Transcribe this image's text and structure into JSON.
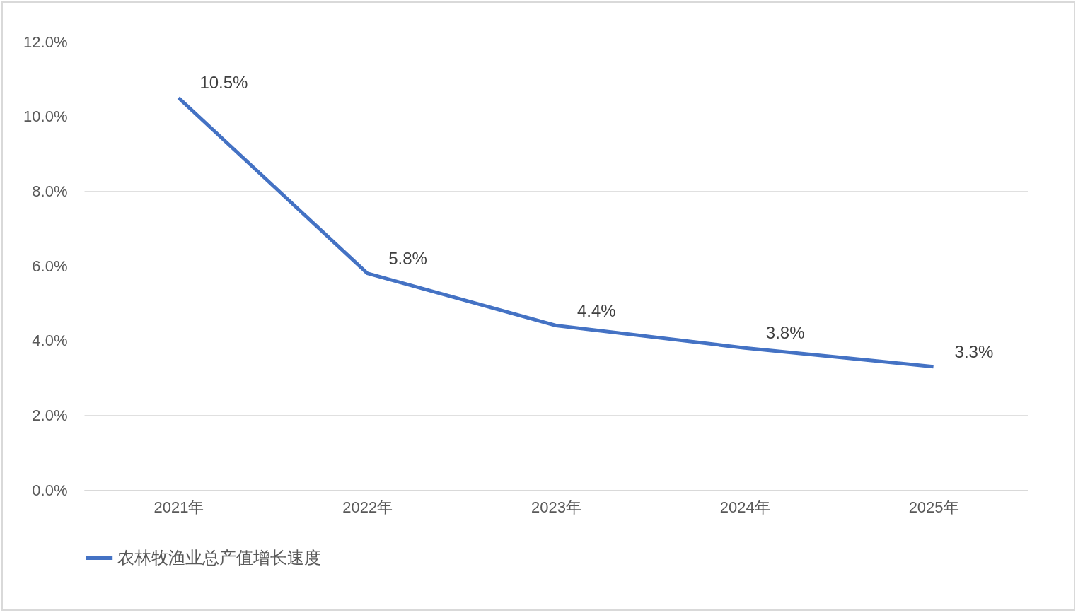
{
  "chart_data": {
    "type": "line",
    "categories": [
      "2021年",
      "2022年",
      "2023年",
      "2024年",
      "2025年"
    ],
    "series": [
      {
        "name": "农林牧渔业总产值增长速度",
        "color": "#4472c4",
        "values": [
          10.5,
          5.8,
          4.4,
          3.8,
          3.3
        ],
        "value_labels": [
          "10.5%",
          "5.8%",
          "4.4%",
          "3.8%",
          "3.3%"
        ]
      }
    ],
    "ylim": [
      0,
      12
    ],
    "yticks": [
      {
        "value": 0,
        "label": "0.0%"
      },
      {
        "value": 2,
        "label": "2.0%"
      },
      {
        "value": 4,
        "label": "4.0%"
      },
      {
        "value": 6,
        "label": "6.0%"
      },
      {
        "value": 8,
        "label": "8.0%"
      },
      {
        "value": 10,
        "label": "10.0%"
      },
      {
        "value": 12,
        "label": "12.0%"
      }
    ],
    "grid": "y",
    "legend": "bottom",
    "marker": "none",
    "line_style": "solid"
  }
}
